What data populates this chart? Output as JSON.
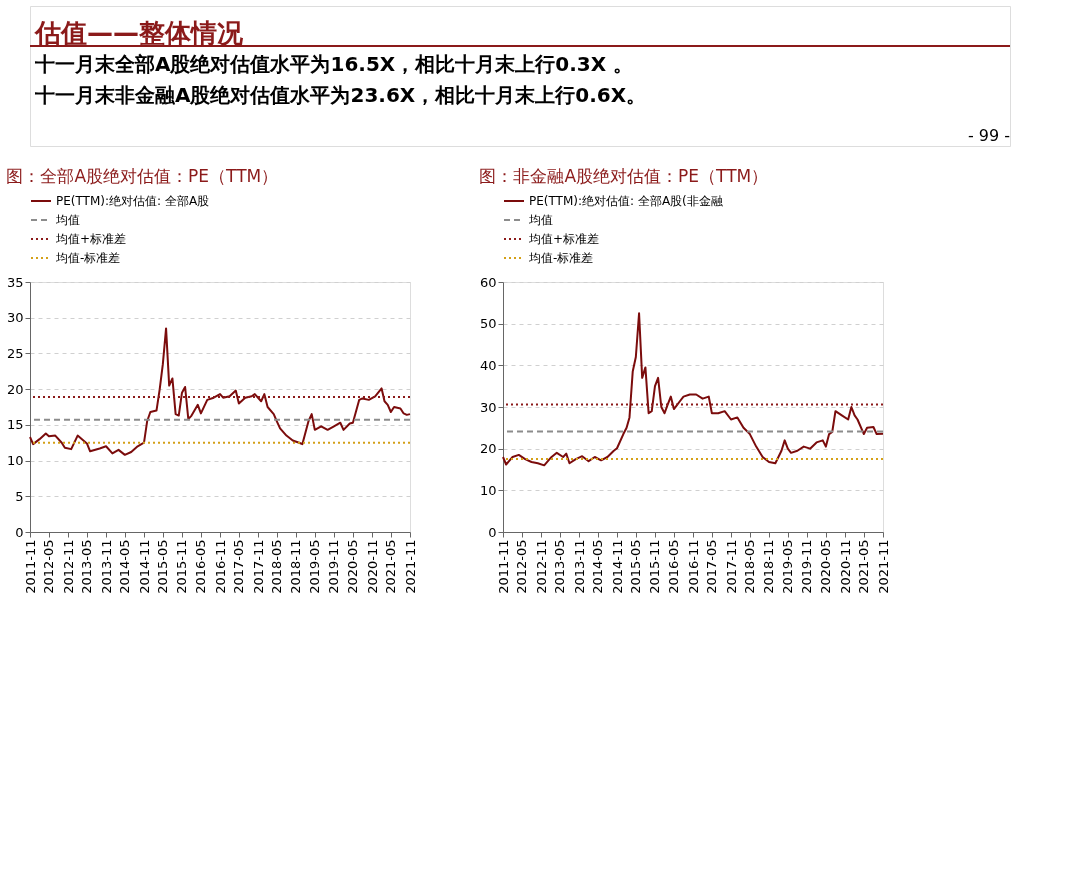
{
  "chart_data": [
    {
      "type": "other",
      "title": "估值——整体情况",
      "annotations": [
        "十一月末全部A股绝对估值水平为16.5X，相比十月末上行0.3X 。",
        "十一月末非金融A股绝对估值水平为23.6X，相比十月末上行0.6X。",
        "- 99 -"
      ]
    },
    {
      "type": "line",
      "title": "图：全部A股绝对估值：PE（TTM）",
      "legend": "top",
      "grid": "y",
      "line_style": "solid",
      "x": [
        "2011-11",
        "2011-12",
        "2012-02",
        "2012-04",
        "2012-05",
        "2012-07",
        "2012-09",
        "2012-10",
        "2012-12",
        "2013-02",
        "2013-05",
        "2013-06",
        "2013-09",
        "2013-11",
        "2014-01",
        "2014-03",
        "2014-05",
        "2014-07",
        "2014-09",
        "2014-11",
        "2014-12",
        "2015-01",
        "2015-03",
        "2015-04",
        "2015-05",
        "2015-06",
        "2015-07",
        "2015-08",
        "2015-09",
        "2015-10",
        "2015-11",
        "2015-12",
        "2016-01",
        "2016-02",
        "2016-04",
        "2016-05",
        "2016-07",
        "2016-09",
        "2016-11",
        "2016-12",
        "2017-02",
        "2017-04",
        "2017-05",
        "2017-07",
        "2017-09",
        "2017-10",
        "2017-12",
        "2018-01",
        "2018-02",
        "2018-04",
        "2018-05",
        "2018-06",
        "2018-08",
        "2018-10",
        "2018-12",
        "2019-01",
        "2019-03",
        "2019-04",
        "2019-05",
        "2019-07",
        "2019-09",
        "2019-11",
        "2020-01",
        "2020-02",
        "2020-04",
        "2020-05",
        "2020-07",
        "2020-08",
        "2020-10",
        "2020-12",
        "2021-02",
        "2021-03",
        "2021-04",
        "2021-05",
        "2021-06",
        "2021-08",
        "2021-09",
        "2021-10",
        "2021-11"
      ],
      "series": [
        {
          "name": "PE(TTM):绝对估值: 全部A股",
          "color": "#7b0c0c",
          "values": [
            13.3,
            12.3,
            13.0,
            13.8,
            13.4,
            13.5,
            12.5,
            11.8,
            11.6,
            13.5,
            12.4,
            11.3,
            11.7,
            12.0,
            11.0,
            11.5,
            10.8,
            11.2,
            12.0,
            12.5,
            15.5,
            16.8,
            17.0,
            20.0,
            23.5,
            28.5,
            20.5,
            21.5,
            16.5,
            16.3,
            19.5,
            20.3,
            15.8,
            16.3,
            17.8,
            16.6,
            18.5,
            18.8,
            19.3,
            18.8,
            19.0,
            19.8,
            18.0,
            18.8,
            19.0,
            19.3,
            18.3,
            19.3,
            17.5,
            16.5,
            15.5,
            14.5,
            13.5,
            12.8,
            12.5,
            12.3,
            15.5,
            16.5,
            14.3,
            14.8,
            14.3,
            14.8,
            15.3,
            14.3,
            15.2,
            15.3,
            18.5,
            18.7,
            18.5,
            19.0,
            20.1,
            18.3,
            17.8,
            16.8,
            17.5,
            17.3,
            16.6,
            16.4,
            16.5
          ]
        }
      ],
      "ref_lines": [
        {
          "axis": "y",
          "value": 15.7,
          "label": "均值",
          "color": "#8c8c8c",
          "line_style": "dashed"
        },
        {
          "axis": "y",
          "value": 18.9,
          "label": "均值+标准差",
          "color": "#8b1a1a",
          "line_style": "dotted"
        },
        {
          "axis": "y",
          "value": 12.5,
          "label": "均值-标准差",
          "color": "#d4a017",
          "line_style": "dotted"
        }
      ],
      "xlim": [
        "2011-11",
        "2021-11"
      ],
      "xticks": [
        "2011-11",
        "2012-05",
        "2012-11",
        "2013-05",
        "2013-11",
        "2014-05",
        "2014-11",
        "2015-05",
        "2015-11",
        "2016-05",
        "2016-11",
        "2017-05",
        "2017-11",
        "2018-05",
        "2018-11",
        "2019-05",
        "2019-11",
        "2020-05",
        "2020-11",
        "2021-05",
        "2021-11"
      ],
      "ylim": [
        0,
        35
      ],
      "yticks": [
        0,
        5,
        10,
        15,
        20,
        25,
        30,
        35
      ]
    },
    {
      "type": "line",
      "title": "图：非金融A股绝对估值：PE（TTM）",
      "legend": "top",
      "grid": "y",
      "line_style": "solid",
      "x": [
        "2011-11",
        "2011-12",
        "2012-02",
        "2012-04",
        "2012-06",
        "2012-08",
        "2012-10",
        "2012-12",
        "2013-02",
        "2013-04",
        "2013-06",
        "2013-07",
        "2013-08",
        "2013-10",
        "2013-12",
        "2014-02",
        "2014-04",
        "2014-06",
        "2014-08",
        "2014-10",
        "2014-11",
        "2015-01",
        "2015-02",
        "2015-03",
        "2015-04",
        "2015-05",
        "2015-06",
        "2015-07",
        "2015-08",
        "2015-09",
        "2015-10",
        "2015-11",
        "2015-12",
        "2016-01",
        "2016-02",
        "2016-03",
        "2016-04",
        "2016-05",
        "2016-06",
        "2016-07",
        "2016-08",
        "2016-10",
        "2016-12",
        "2017-02",
        "2017-04",
        "2017-05",
        "2017-07",
        "2017-09",
        "2017-11",
        "2018-01",
        "2018-03",
        "2018-05",
        "2018-07",
        "2018-09",
        "2018-11",
        "2019-01",
        "2019-03",
        "2019-04",
        "2019-05",
        "2019-06",
        "2019-08",
        "2019-10",
        "2019-12",
        "2020-02",
        "2020-04",
        "2020-05",
        "2020-06",
        "2020-07",
        "2020-08",
        "2020-10",
        "2020-12",
        "2021-01",
        "2021-02",
        "2021-03",
        "2021-05",
        "2021-06",
        "2021-08",
        "2021-09",
        "2021-11"
      ],
      "series": [
        {
          "name": "PE(TTM):绝对估值: 全部A股(非金融",
          "color": "#7b0c0c",
          "values": [
            18.0,
            16.2,
            18.0,
            18.5,
            17.5,
            16.8,
            16.5,
            16.0,
            17.8,
            19.0,
            18.0,
            18.8,
            16.5,
            17.5,
            18.2,
            17.0,
            18.0,
            17.2,
            18.0,
            19.5,
            20.1,
            23.5,
            25.0,
            27.5,
            38.5,
            42.0,
            52.5,
            37.0,
            39.5,
            28.5,
            29.0,
            35.0,
            37.0,
            30.0,
            28.5,
            30.5,
            32.5,
            29.5,
            30.5,
            31.5,
            32.5,
            33.0,
            33.0,
            32.0,
            32.5,
            28.5,
            28.5,
            29.0,
            27.0,
            27.5,
            25.0,
            23.5,
            20.5,
            18.0,
            16.8,
            16.5,
            19.5,
            22.0,
            20.0,
            19.0,
            19.5,
            20.5,
            20.0,
            21.5,
            22.0,
            20.5,
            23.5,
            24.0,
            29.0,
            28.0,
            27.0,
            30.0,
            28.0,
            27.0,
            23.5,
            25.0,
            25.2,
            23.5,
            23.6
          ]
        }
      ],
      "ref_lines": [
        {
          "axis": "y",
          "value": 24.1,
          "label": "均值",
          "color": "#8c8c8c",
          "line_style": "dashed"
        },
        {
          "axis": "y",
          "value": 30.6,
          "label": "均值+标准差",
          "color": "#8b1a1a",
          "line_style": "dotted"
        },
        {
          "axis": "y",
          "value": 17.5,
          "label": "均值-标准差",
          "color": "#d4a017",
          "line_style": "dotted"
        }
      ],
      "xlim": [
        "2011-11",
        "2021-11"
      ],
      "xticks": [
        "2011-11",
        "2012-05",
        "2012-11",
        "2013-05",
        "2013-11",
        "2014-05",
        "2014-11",
        "2015-05",
        "2015-11",
        "2016-05",
        "2016-11",
        "2017-05",
        "2017-11",
        "2018-05",
        "2018-11",
        "2019-05",
        "2019-11",
        "2020-05",
        "2020-11",
        "2021-05",
        "2021-11"
      ],
      "ylim": [
        0,
        60
      ],
      "yticks": [
        0,
        10,
        20,
        30,
        40,
        50,
        60
      ]
    }
  ]
}
